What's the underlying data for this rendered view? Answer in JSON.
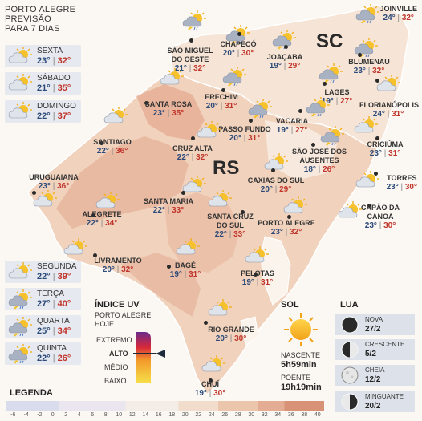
{
  "header": {
    "line1": "PORTO ALEGRE",
    "line2": "PREVISÃO",
    "line3": "PARA 7 DIAS"
  },
  "forecast": [
    {
      "day": "SEXTA",
      "min": "23°",
      "max": "32°",
      "icon": "sun-cloud-icon"
    },
    {
      "day": "SÁBADO",
      "min": "21°",
      "max": "35°",
      "icon": "sun-cloud-icon"
    },
    {
      "day": "DOMINGO",
      "min": "22°",
      "max": "37°",
      "icon": "sun-cloud-icon"
    },
    {
      "day": "SEGUNDA",
      "min": "22°",
      "max": "39°",
      "icon": "sun-cloud-icon"
    },
    {
      "day": "TERÇA",
      "min": "27°",
      "max": "40°",
      "icon": "storm-icon"
    },
    {
      "day": "QUARTA",
      "min": "25°",
      "max": "34°",
      "icon": "storm-icon"
    },
    {
      "day": "QUINTA",
      "min": "22°",
      "max": "26°",
      "icon": "storm-icon"
    }
  ],
  "states": {
    "sc": "SC",
    "rs": "RS"
  },
  "cities": [
    {
      "name": "JOINVILLE",
      "min": "24°",
      "max": "32°",
      "icon": "storm-icon"
    },
    {
      "name": "SÃO MIGUEL DO OESTE",
      "min": "21°",
      "max": "32°",
      "icon": "storm-icon"
    },
    {
      "name": "CHAPECÓ",
      "min": "20°",
      "max": "30°",
      "icon": "storm-icon"
    },
    {
      "name": "JOAÇABA",
      "min": "19°",
      "max": "29°",
      "icon": "storm-icon"
    },
    {
      "name": "BLUMENAU",
      "min": "23°",
      "max": "32°",
      "icon": "storm-icon"
    },
    {
      "name": "LAGES",
      "min": "19°",
      "max": "27°",
      "icon": "storm-icon"
    },
    {
      "name": "FLORIANÓPOLIS",
      "min": "24°",
      "max": "31°",
      "icon": "sun-cloud-icon"
    },
    {
      "name": "ERECHIM",
      "min": "20°",
      "max": "31°",
      "icon": "storm-icon"
    },
    {
      "name": "SANTA ROSA",
      "min": "23°",
      "max": "35°",
      "icon": "sun-cloud-icon"
    },
    {
      "name": "PASSO FUNDO",
      "min": "20°",
      "max": "31°",
      "icon": "storm-icon"
    },
    {
      "name": "VACARIA",
      "min": "19°",
      "max": "27°",
      "icon": "storm-icon"
    },
    {
      "name": "CRICIÚMA",
      "min": "23°",
      "max": "31°",
      "icon": "sun-cloud-icon"
    },
    {
      "name": "SANTIAGO",
      "min": "22°",
      "max": "36°",
      "icon": "sun-cloud-icon"
    },
    {
      "name": "CRUZ ALTA",
      "min": "22°",
      "max": "32°",
      "icon": "sun-cloud-icon"
    },
    {
      "name": "SÃO JOSÉ DOS AUSENTES",
      "min": "18°",
      "max": "26°",
      "icon": "storm-icon"
    },
    {
      "name": "TORRES",
      "min": "23°",
      "max": "30°",
      "icon": "sun-cloud-icon"
    },
    {
      "name": "URUGUAIANA",
      "min": "23°",
      "max": "36°",
      "icon": "sun-cloud-icon"
    },
    {
      "name": "CAXIAS DO SUL",
      "min": "20°",
      "max": "29°",
      "icon": "sun-cloud-icon"
    },
    {
      "name": "SANTA MARIA",
      "min": "22°",
      "max": "33°",
      "icon": "sun-cloud-icon"
    },
    {
      "name": "CAPÃO DA CANOA",
      "min": "23°",
      "max": "30°",
      "icon": "sun-cloud-icon"
    },
    {
      "name": "ALEGRETE",
      "min": "22°",
      "max": "34°",
      "icon": "sun-cloud-icon"
    },
    {
      "name": "SANTA CRUZ DO SUL",
      "min": "22°",
      "max": "33°",
      "icon": "sun-cloud-icon"
    },
    {
      "name": "PORTO ALEGRE",
      "min": "23°",
      "max": "32°",
      "icon": "sun-cloud-icon"
    },
    {
      "name": "LIVRAMENTO",
      "min": "20°",
      "max": "32°",
      "icon": "sun-cloud-icon"
    },
    {
      "name": "BAGÉ",
      "min": "19°",
      "max": "31°",
      "icon": "sun-cloud-icon"
    },
    {
      "name": "PELOTAS",
      "min": "19°",
      "max": "31°",
      "icon": "sun-cloud-icon"
    },
    {
      "name": "RIO GRANDE",
      "min": "20°",
      "max": "30°",
      "icon": "sun-cloud-icon"
    },
    {
      "name": "CHUÍ",
      "min": "19°",
      "max": "30°",
      "icon": "sun-cloud-icon"
    }
  ],
  "uv": {
    "title": "ÍNDICE UV",
    "subtitle1": "PORTO ALEGRE",
    "subtitle2": "HOJE",
    "levels": [
      "EXTREMO",
      "ALTO",
      "MÉDIO",
      "BAIXO"
    ],
    "current_level": "ALTO"
  },
  "sun": {
    "title": "SOL",
    "rise_label": "NASCENTE",
    "rise": "5h59min",
    "set_label": "POENTE",
    "set": "19h19min",
    "icon": "sun-icon"
  },
  "moon": {
    "title": "LUA",
    "phases": [
      {
        "name": "NOVA",
        "date": "27/2",
        "icon": "new-moon-icon"
      },
      {
        "name": "CRESCENTE",
        "date": "5/2",
        "icon": "first-quarter-moon-icon"
      },
      {
        "name": "CHEIA",
        "date": "12/2",
        "icon": "full-moon-icon"
      },
      {
        "name": "MINGUANTE",
        "date": "20/2",
        "icon": "last-quarter-moon-icon"
      }
    ]
  },
  "legend": {
    "title": "LEGENDA",
    "ticks": [
      "-6",
      "-4",
      "-2",
      "0",
      "2",
      "4",
      "6",
      "8",
      "10",
      "12",
      "14",
      "16",
      "18",
      "20",
      "22",
      "24",
      "26",
      "28",
      "30",
      "32",
      "34",
      "36",
      "38",
      "40"
    ]
  },
  "colors": {
    "tmin": "#2c4a7a",
    "tmax": "#c0352b",
    "map_warm": "#e8b49a",
    "map_mild": "#f1d6c3",
    "map_cool": "#f6e7da",
    "border": "#ffffff",
    "uv_extremo": "#6b2a8a",
    "uv_alto": "#d8283a",
    "uv_medio": "#f29a2a",
    "uv_baixo": "#f6e04a"
  }
}
